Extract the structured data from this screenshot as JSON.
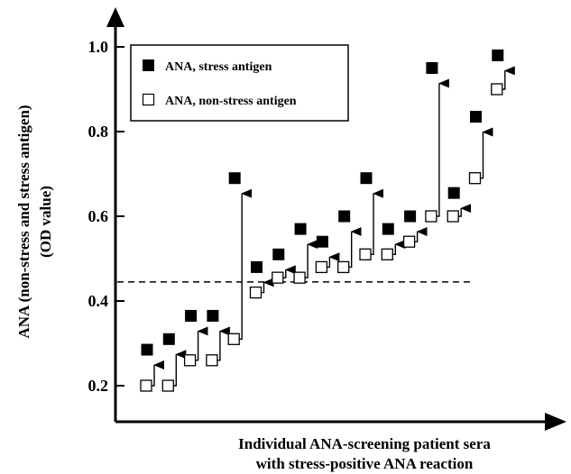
{
  "chart_data": {
    "type": "scatter",
    "ylabel_line1": "ANA (non-stress and stress antigen)",
    "ylabel_line2": "(OD value)",
    "xlabel_line1": "Individual ANA-screening patient sera",
    "xlabel_line2": "with stress-positive ANA reaction",
    "ylim": [
      0.15,
      1.07
    ],
    "yticks": [
      0.2,
      0.4,
      0.6,
      0.8,
      1.0
    ],
    "ytick_labels": [
      "0.2",
      "0.4",
      "0.6",
      "0.8",
      "1.0"
    ],
    "threshold": 0.445,
    "legend": {
      "stress_label": "ANA, stress antigen",
      "nonstress_label": "ANA, non-stress antigen"
    },
    "series": [
      {
        "name": "ANA, non-stress antigen",
        "marker": "open-square",
        "values": [
          0.2,
          0.2,
          0.26,
          0.26,
          0.31,
          0.42,
          0.455,
          0.455,
          0.48,
          0.48,
          0.51,
          0.51,
          0.54,
          0.6,
          0.6,
          0.69,
          0.9
        ]
      },
      {
        "name": "ANA, stress antigen",
        "marker": "filled-square",
        "values": [
          0.285,
          0.31,
          0.365,
          0.365,
          0.69,
          0.48,
          0.51,
          0.57,
          0.54,
          0.6,
          0.69,
          0.57,
          0.6,
          0.95,
          0.655,
          0.835,
          0.98
        ]
      }
    ],
    "colors": {
      "ink": "#000000",
      "background": "#ffffff"
    }
  }
}
